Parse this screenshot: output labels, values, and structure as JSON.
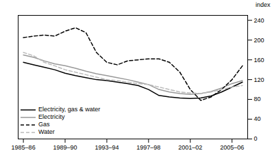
{
  "chart_data": {
    "type": "line",
    "x": [
      1985,
      1986,
      1987,
      1988,
      1989,
      1990,
      1991,
      1992,
      1993,
      1994,
      1995,
      1996,
      1997,
      1998,
      1999,
      2000,
      2001,
      2002,
      2003,
      2004,
      2005,
      2006
    ],
    "series": [
      {
        "name": "Electricity, gas & water",
        "color": "#000000",
        "line_style": "solid",
        "values": [
          155,
          150,
          145,
          140,
          133,
          128,
          124,
          120,
          118,
          115,
          112,
          108,
          100,
          88,
          85,
          83,
          82,
          83,
          87,
          95,
          105,
          115
        ]
      },
      {
        "name": "Electricity",
        "color": "#999999",
        "line_style": "solid",
        "values": [
          170,
          165,
          158,
          152,
          148,
          143,
          137,
          132,
          128,
          124,
          120,
          115,
          110,
          100,
          95,
          92,
          90,
          92,
          96,
          103,
          112,
          118
        ]
      },
      {
        "name": "Gas",
        "color": "#000000",
        "line_style": "dashed",
        "values": [
          205,
          208,
          210,
          208,
          218,
          225,
          215,
          175,
          155,
          150,
          158,
          160,
          162,
          162,
          155,
          135,
          100,
          78,
          85,
          100,
          120,
          148
        ]
      },
      {
        "name": "Water",
        "color": "#bbbbbb",
        "line_style": "dashed",
        "values": [
          175,
          168,
          155,
          148,
          140,
          135,
          130,
          125,
          120,
          118,
          115,
          112,
          110,
          105,
          100,
          95,
          93,
          92,
          95,
          100,
          105,
          108
        ]
      }
    ],
    "xlim": [
      1984.5,
      2006.5
    ],
    "xticks": [
      {
        "value": 1985,
        "label": "1985–86"
      },
      {
        "value": 1989,
        "label": "1989–90"
      },
      {
        "value": 1993,
        "label": "1993–94"
      },
      {
        "value": 1997,
        "label": "1997–98"
      },
      {
        "value": 2001,
        "label": "2001–02"
      },
      {
        "value": 2005,
        "label": "2005–06"
      }
    ],
    "ylim": [
      0,
      250
    ],
    "yticks": [
      0,
      40,
      80,
      120,
      160,
      200,
      240
    ],
    "ylabel": "index",
    "legend": "lower left",
    "grid": false
  }
}
